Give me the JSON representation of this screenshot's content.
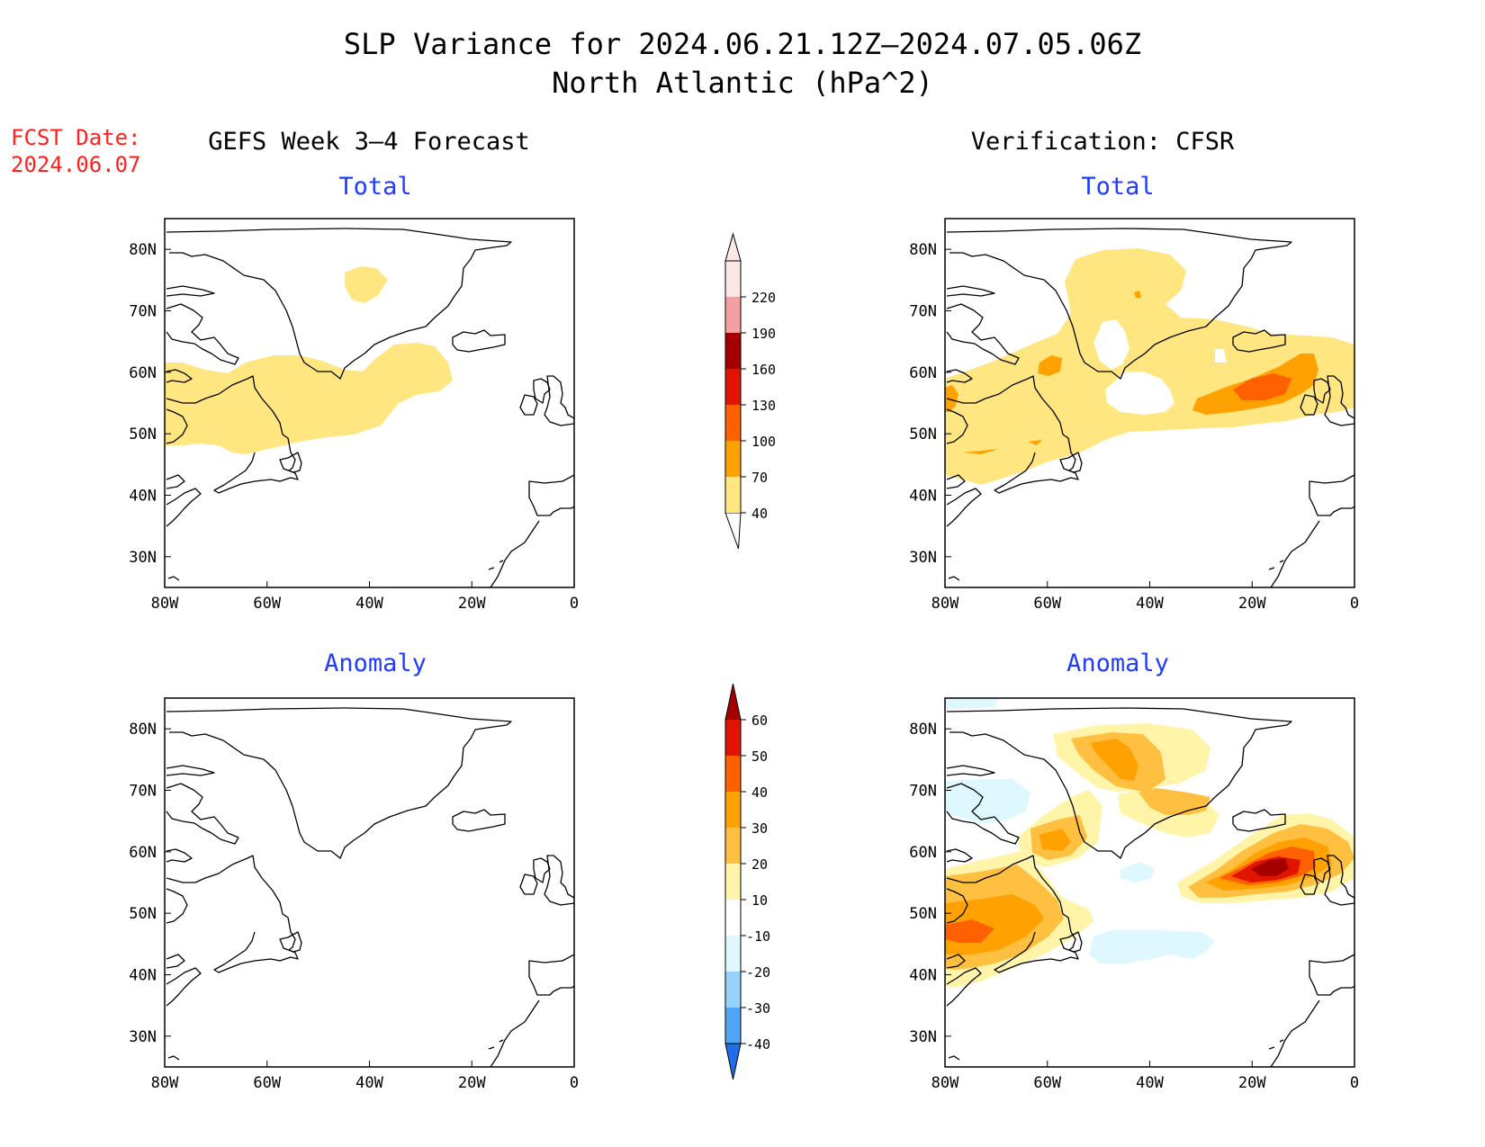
{
  "title": {
    "line1": "SLP Variance for 2024.06.21.12Z–2024.07.05.06Z",
    "line2": "North Atlantic (hPa^2)"
  },
  "fcst_date": {
    "label": "FCST Date:",
    "value": "2024.06.07"
  },
  "columns": {
    "left": "GEFS Week 3–4 Forecast",
    "right": "Verification: CFSR"
  },
  "subtitles": {
    "total": "Total",
    "anomaly": "Anomaly"
  },
  "axes": {
    "lat_labels": [
      "80N",
      "70N",
      "60N",
      "50N",
      "40N",
      "30N"
    ],
    "lat_values": [
      80,
      70,
      60,
      50,
      40,
      30
    ],
    "lon_labels": [
      "80W",
      "60W",
      "40W",
      "20W",
      "0"
    ],
    "lon_values": [
      -80,
      -60,
      -40,
      -20,
      0
    ],
    "lat_range": [
      25,
      85
    ],
    "lon_range": [
      -80,
      0
    ]
  },
  "colorbars": {
    "total": {
      "levels": [
        "40",
        "70",
        "100",
        "130",
        "160",
        "190",
        "220"
      ],
      "colors": [
        "#ffe680",
        "#ffa100",
        "#ff6000",
        "#e11400",
        "#a50000",
        "#f4a0a0",
        "#fde6e6"
      ]
    },
    "anomaly": {
      "levels": [
        "60",
        "50",
        "40",
        "30",
        "20",
        "10",
        "-10",
        "-20",
        "-30",
        "-40"
      ],
      "colors_top_to_bottom": [
        "#a50000",
        "#e11400",
        "#ff6000",
        "#ffa100",
        "#ffbf40",
        "#fff4a8",
        "#ffffff",
        "#dff8ff",
        "#96d2fa",
        "#50a5f5",
        "#1e6eeb"
      ]
    }
  },
  "icons": [
    "coastline-map"
  ]
}
